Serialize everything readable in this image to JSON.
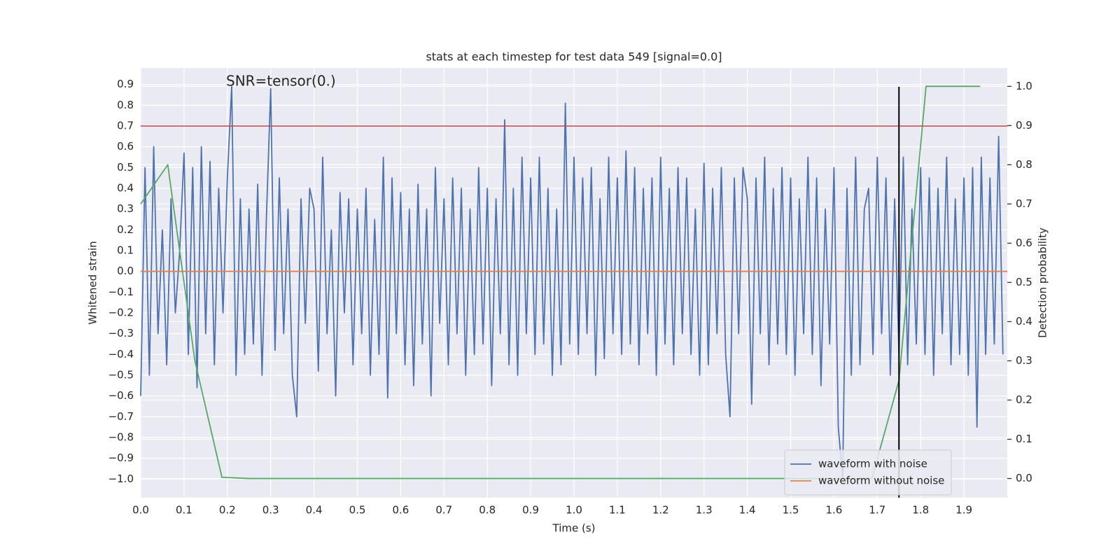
{
  "chart_data": {
    "type": "line",
    "title": "stats at each timestep for test data 549 [signal=0.0]",
    "annotation": "SNR=tensor(0.)",
    "xlabel": "Time (s)",
    "ylabel": "Whitened strain",
    "y2label": "Detection probability",
    "xlim": [
      0,
      2.0
    ],
    "ylim": [
      -1.09,
      0.98
    ],
    "y2lim": [
      -0.049,
      1.047
    ],
    "grid": true,
    "legend": "lower right",
    "xticks": [
      {
        "value": 0,
        "label": "0.0"
      },
      {
        "value": 0.1,
        "label": "0.1"
      },
      {
        "value": 0.2,
        "label": "0.2"
      },
      {
        "value": 0.3,
        "label": "0.3"
      },
      {
        "value": 0.4,
        "label": "0.4"
      },
      {
        "value": 0.5,
        "label": "0.5"
      },
      {
        "value": 0.6,
        "label": "0.6"
      },
      {
        "value": 0.7,
        "label": "0.7"
      },
      {
        "value": 0.8,
        "label": "0.8"
      },
      {
        "value": 0.9,
        "label": "0.9"
      },
      {
        "value": 1.0,
        "label": "1.0"
      },
      {
        "value": 1.1,
        "label": "1.1"
      },
      {
        "value": 1.2,
        "label": "1.2"
      },
      {
        "value": 1.3,
        "label": "1.3"
      },
      {
        "value": 1.4,
        "label": "1.4"
      },
      {
        "value": 1.5,
        "label": "1.5"
      },
      {
        "value": 1.6,
        "label": "1.6"
      },
      {
        "value": 1.7,
        "label": "1.7"
      },
      {
        "value": 1.8,
        "label": "1.8"
      },
      {
        "value": 1.9,
        "label": "1.9"
      }
    ],
    "yticks": [
      {
        "value": -1.0,
        "label": "−1.0"
      },
      {
        "value": -0.9,
        "label": "−0.9"
      },
      {
        "value": -0.8,
        "label": "−0.8"
      },
      {
        "value": -0.7,
        "label": "−0.7"
      },
      {
        "value": -0.6,
        "label": "−0.6"
      },
      {
        "value": -0.5,
        "label": "−0.5"
      },
      {
        "value": -0.4,
        "label": "−0.4"
      },
      {
        "value": -0.3,
        "label": "−0.3"
      },
      {
        "value": -0.2,
        "label": "−0.2"
      },
      {
        "value": -0.1,
        "label": "−0.1"
      },
      {
        "value": 0,
        "label": "0.0"
      },
      {
        "value": 0.1,
        "label": "0.1"
      },
      {
        "value": 0.2,
        "label": "0.2"
      },
      {
        "value": 0.3,
        "label": "0.3"
      },
      {
        "value": 0.4,
        "label": "0.4"
      },
      {
        "value": 0.5,
        "label": "0.5"
      },
      {
        "value": 0.6,
        "label": "0.6"
      },
      {
        "value": 0.7,
        "label": "0.7"
      },
      {
        "value": 0.8,
        "label": "0.8"
      },
      {
        "value": 0.9,
        "label": "0.9"
      }
    ],
    "y2ticks": [
      {
        "value": 0,
        "label": "0.0"
      },
      {
        "value": 0.1,
        "label": "0.1"
      },
      {
        "value": 0.2,
        "label": "0.2"
      },
      {
        "value": 0.3,
        "label": "0.3"
      },
      {
        "value": 0.4,
        "label": "0.4"
      },
      {
        "value": 0.5,
        "label": "0.5"
      },
      {
        "value": 0.6,
        "label": "0.6"
      },
      {
        "value": 0.7,
        "label": "0.7"
      },
      {
        "value": 0.8,
        "label": "0.8"
      },
      {
        "value": 0.9,
        "label": "0.9"
      },
      {
        "value": 1.0,
        "label": "1.0"
      }
    ],
    "hlines": [
      {
        "y": 0.7,
        "color": "#c44e52"
      }
    ],
    "vlines": [
      {
        "x": 1.75,
        "color": "#000000"
      }
    ],
    "series": [
      {
        "name": "waveform with noise",
        "color": "#4c72b0",
        "x": [
          0,
          0.01,
          0.02,
          0.03,
          0.04,
          0.05,
          0.06,
          0.07,
          0.08,
          0.09,
          0.1,
          0.11,
          0.12,
          0.13,
          0.14,
          0.15,
          0.16,
          0.17,
          0.18,
          0.19,
          0.2,
          0.21,
          0.22,
          0.23,
          0.24,
          0.25,
          0.26,
          0.27,
          0.28,
          0.29,
          0.3,
          0.31,
          0.32,
          0.33,
          0.34,
          0.35,
          0.36,
          0.37,
          0.38,
          0.39,
          0.4,
          0.41,
          0.42,
          0.43,
          0.44,
          0.45,
          0.46,
          0.47,
          0.48,
          0.49,
          0.5,
          0.51,
          0.52,
          0.53,
          0.54,
          0.55,
          0.56,
          0.57,
          0.58,
          0.59,
          0.6,
          0.61,
          0.62,
          0.63,
          0.64,
          0.65,
          0.66,
          0.67,
          0.68,
          0.69,
          0.7,
          0.71,
          0.72,
          0.73,
          0.74,
          0.75,
          0.76,
          0.77,
          0.78,
          0.79,
          0.8,
          0.81,
          0.82,
          0.83,
          0.84,
          0.85,
          0.86,
          0.87,
          0.88,
          0.89,
          0.9,
          0.91,
          0.92,
          0.93,
          0.94,
          0.95,
          0.96,
          0.97,
          0.98,
          0.99,
          1.0,
          1.01,
          1.02,
          1.03,
          1.04,
          1.05,
          1.06,
          1.07,
          1.08,
          1.09,
          1.1,
          1.11,
          1.12,
          1.13,
          1.14,
          1.15,
          1.16,
          1.17,
          1.18,
          1.19,
          1.2,
          1.21,
          1.22,
          1.23,
          1.24,
          1.25,
          1.26,
          1.27,
          1.28,
          1.29,
          1.3,
          1.31,
          1.32,
          1.33,
          1.34,
          1.35,
          1.36,
          1.37,
          1.38,
          1.39,
          1.4,
          1.41,
          1.42,
          1.43,
          1.44,
          1.45,
          1.46,
          1.47,
          1.48,
          1.49,
          1.5,
          1.51,
          1.52,
          1.53,
          1.54,
          1.55,
          1.56,
          1.57,
          1.58,
          1.59,
          1.6,
          1.61,
          1.62,
          1.63,
          1.64,
          1.65,
          1.66,
          1.67,
          1.68,
          1.69,
          1.7,
          1.71,
          1.72,
          1.73,
          1.74,
          1.75,
          1.76,
          1.77,
          1.78,
          1.79,
          1.8,
          1.81,
          1.82,
          1.83,
          1.84,
          1.85,
          1.86,
          1.87,
          1.88,
          1.89,
          1.9,
          1.91,
          1.92,
          1.93,
          1.94,
          1.95,
          1.96,
          1.97,
          1.98,
          1.99
        ],
        "values": [
          -0.6,
          0.5,
          -0.5,
          0.6,
          -0.3,
          0.2,
          -0.45,
          0.35,
          -0.2,
          0.1,
          0.57,
          -0.4,
          0.5,
          -0.56,
          0.6,
          -0.3,
          0.53,
          -0.45,
          0.4,
          -0.2,
          0.45,
          0.89,
          -0.5,
          0.35,
          -0.4,
          0.3,
          -0.35,
          0.42,
          -0.5,
          0.25,
          0.88,
          -0.38,
          0.45,
          -0.3,
          0.3,
          -0.5,
          -0.7,
          0.35,
          -0.25,
          0.4,
          0.3,
          -0.48,
          0.55,
          -0.3,
          0.2,
          -0.6,
          0.38,
          -0.2,
          0.35,
          -0.45,
          0.3,
          -0.3,
          0.4,
          -0.5,
          0.25,
          -0.4,
          0.55,
          -0.61,
          0.45,
          -0.3,
          0.38,
          -0.45,
          0.3,
          -0.55,
          0.42,
          -0.35,
          0.3,
          -0.6,
          0.5,
          -0.25,
          0.35,
          -0.45,
          0.45,
          -0.3,
          0.4,
          -0.5,
          0.3,
          -0.4,
          0.5,
          -0.35,
          0.4,
          -0.55,
          0.35,
          -0.3,
          0.73,
          -0.45,
          0.4,
          -0.5,
          0.55,
          -0.3,
          0.45,
          -0.4,
          0.55,
          -0.35,
          0.4,
          -0.5,
          0.3,
          -0.45,
          0.81,
          -0.35,
          0.55,
          -0.4,
          0.45,
          -0.3,
          0.5,
          -0.5,
          0.35,
          -0.42,
          0.55,
          -0.3,
          0.45,
          -0.4,
          0.58,
          -0.35,
          0.5,
          -0.45,
          0.4,
          -0.3,
          0.45,
          -0.5,
          0.55,
          -0.35,
          0.4,
          -0.45,
          0.5,
          -0.3,
          0.45,
          -0.4,
          0.3,
          -0.5,
          0.52,
          -0.45,
          0.4,
          -0.3,
          0.5,
          -0.4,
          -0.7,
          0.45,
          -0.3,
          0.5,
          0.35,
          -0.64,
          0.45,
          -0.3,
          0.55,
          -0.45,
          0.4,
          -0.35,
          0.5,
          -0.4,
          0.45,
          -0.5,
          0.35,
          -0.3,
          0.55,
          -0.4,
          0.45,
          -0.55,
          0.3,
          -0.35,
          0.5,
          -0.75,
          -1.0,
          0.4,
          -0.5,
          0.55,
          -0.45,
          0.3,
          0.4,
          -0.4,
          0.55,
          -0.3,
          0.45,
          -0.5,
          0.35,
          -0.4,
          0.55,
          -0.45,
          0.3,
          -0.35,
          0.5,
          -0.4,
          0.45,
          -0.5,
          0.4,
          -0.3,
          0.55,
          -0.45,
          0.35,
          -0.4,
          0.45,
          -0.5,
          0.5,
          -0.75,
          0.55,
          -0.4,
          0.45,
          -0.35,
          0.65,
          -0.4
        ]
      },
      {
        "name": "waveform without noise",
        "color": "#dd8452",
        "x": [
          0,
          2.0
        ],
        "values": [
          0,
          0
        ]
      },
      {
        "color": "#55a868",
        "axis": "y2",
        "x": [
          0,
          0.0625,
          0.125,
          0.1875,
          0.25,
          0.3125,
          0.375,
          0.4375,
          0.5,
          0.5625,
          0.625,
          0.6875,
          0.75,
          0.8125,
          0.875,
          0.9375,
          1.0,
          1.0625,
          1.125,
          1.1875,
          1.25,
          1.3125,
          1.375,
          1.4375,
          1.5,
          1.5625,
          1.625,
          1.6875,
          1.75,
          1.8125,
          1.875,
          1.9375
        ],
        "values": [
          0.7,
          0.8,
          0.3,
          0.003,
          0,
          0,
          0,
          0,
          0,
          0,
          0,
          0,
          0,
          0,
          0,
          0,
          0,
          0,
          0,
          0,
          0,
          0,
          0,
          0,
          0,
          0,
          0,
          0,
          0.25,
          1.0,
          1.0,
          1.0
        ]
      }
    ]
  }
}
